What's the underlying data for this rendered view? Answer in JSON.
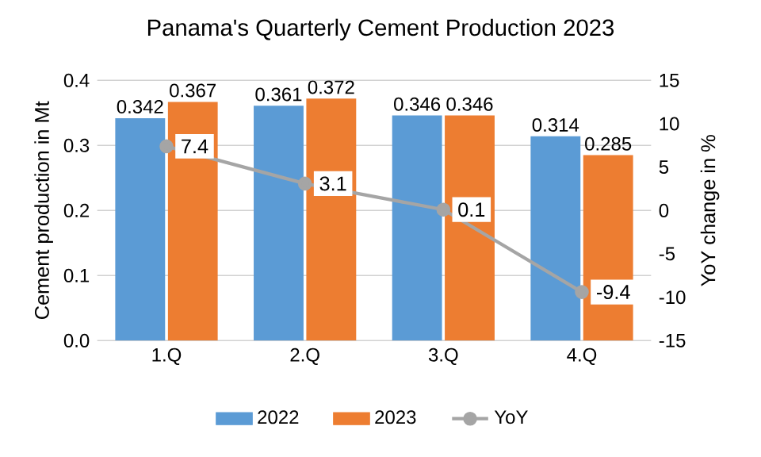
{
  "chart_data": {
    "type": "bar",
    "title": "Panama's Quarterly Cement Production 2023",
    "ylabel": "Cement production in Mt",
    "y2label": "YoY change in %",
    "categories": [
      "1.Q",
      "2.Q",
      "3.Q",
      "4.Q"
    ],
    "series": [
      {
        "name": "2022",
        "color": "#5b9bd5",
        "values": [
          0.342,
          0.361,
          0.346,
          0.314
        ]
      },
      {
        "name": "2023",
        "color": "#ed7d31",
        "values": [
          0.367,
          0.372,
          0.346,
          0.285
        ]
      },
      {
        "name": "YoY",
        "type": "line",
        "axis": "y2",
        "color": "#a5a5a5",
        "values": [
          7.4,
          3.1,
          0.1,
          -9.4
        ]
      }
    ],
    "ylim": [
      0,
      0.4
    ],
    "yticks": [
      {
        "value": 0,
        "label": "0.0"
      },
      {
        "value": 0.1,
        "label": "0.1"
      },
      {
        "value": 0.2,
        "label": "0.2"
      },
      {
        "value": 0.3,
        "label": "0.3"
      },
      {
        "value": 0.4,
        "label": "0.4"
      }
    ],
    "y2lim": [
      -15,
      15
    ],
    "y2ticks": [
      -15,
      -10,
      -5,
      0,
      5,
      10,
      15
    ],
    "grid": "y",
    "legend": "bottom",
    "marker": "circle",
    "line_style": "solid",
    "data_labels": true
  }
}
